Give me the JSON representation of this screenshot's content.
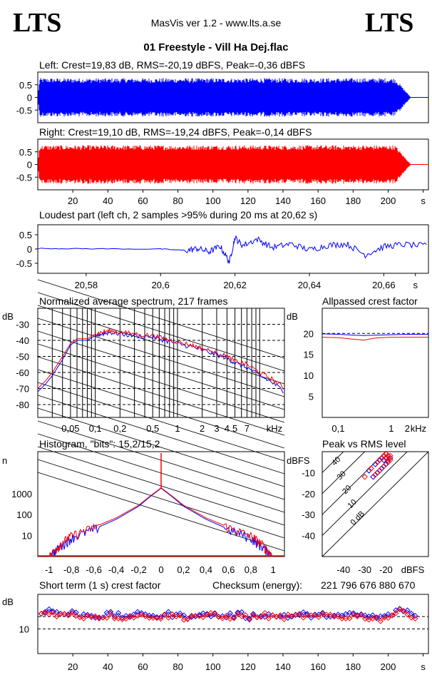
{
  "header": {
    "logo_left": "LTS",
    "logo_right": "LTS",
    "app_title": "MasVis ver 1.2 - www.lts.a.se",
    "file_name": "01 Freestyle - Vill Ha Dej.flac"
  },
  "colors": {
    "left": "#0000ff",
    "right": "#ff0000",
    "grid": "#000000"
  },
  "panels": {
    "left_title": "Left: Crest=19,83 dB, RMS=-20,19 dBFS, Peak=-0,36 dBFS",
    "right_title": "Right: Crest=19,10 dB, RMS=-19,24 dBFS, Peak=-0,14 dBFS",
    "loudest_title": "Loudest part (left  ch, 2 samples >95% during 20 ms at 20,62 s)",
    "spectrum_title": "Normalized average spectrum, 217 frames",
    "allpass_title": "Allpassed crest factor",
    "histogram_title": "Histogram, \"bits\": 15,2/15,2",
    "peakrms_title": "Peak vs RMS level",
    "shortcrest_title": "Short term (1 s) crest factor",
    "checksum_label": "Checksum (energy):",
    "checksum_value": "221 796 676 880 670"
  },
  "chart_data": [
    {
      "type": "area",
      "name": "left-waveform",
      "title": "Left: Crest=19,83 dB, RMS=-20,19 dBFS, Peak=-0,36 dBFS",
      "yticks": [
        "0.5",
        "0",
        "-0.5"
      ],
      "ylim": [
        -1,
        1
      ],
      "xlim": [
        0,
        223
      ],
      "envelope": {
        "end_s": 213,
        "fade_start_s": 204,
        "typical_peak": 0.8,
        "rms_dbfs": -20.19,
        "peak_dbfs": -0.36
      },
      "grid": false
    },
    {
      "type": "area",
      "name": "right-waveform",
      "title": "Right: Crest=19,10 dB, RMS=-19,24 dBFS, Peak=-0,14 dBFS",
      "yticks": [
        "0.5",
        "0",
        "-0.5"
      ],
      "xticks": [
        "20",
        "40",
        "60",
        "80",
        "100",
        "120",
        "140",
        "160",
        "180",
        "200",
        "s"
      ],
      "ylim": [
        -1,
        1
      ],
      "xlim": [
        0,
        223
      ],
      "envelope": {
        "end_s": 213,
        "fade_start_s": 204,
        "typical_peak": 0.8,
        "rms_dbfs": -19.24,
        "peak_dbfs": -0.14
      },
      "grid": false
    },
    {
      "type": "line",
      "name": "loudest-part",
      "title": "Loudest part (left  ch, 2 samples >95% during 20 ms at 20,62 s)",
      "yticks": [
        "0.5",
        "0",
        "-0.5"
      ],
      "xticks": [
        "20,58",
        "20,6",
        "20,62",
        "20,64",
        "20,66",
        "s"
      ],
      "xlim": [
        20.567,
        20.672
      ],
      "ylim": [
        -0.85,
        0.85
      ],
      "x": [
        20.567,
        20.58,
        20.6,
        20.607,
        20.61,
        20.613,
        20.616,
        20.6185,
        20.62,
        20.622,
        20.626,
        20.63,
        20.635,
        20.64,
        20.645,
        20.65,
        20.655,
        20.66,
        20.665,
        20.672
      ],
      "y": [
        0.02,
        0.01,
        0.0,
        -0.05,
        0.02,
        -0.1,
        0.1,
        -0.45,
        0.4,
        0.12,
        0.35,
        0.05,
        0.18,
        -0.03,
        0.13,
        0.18,
        -0.2,
        0.08,
        0.16,
        0.1
      ],
      "grid": false
    },
    {
      "type": "line",
      "name": "normalized-spectrum",
      "title": "Normalized average spectrum, 217 frames",
      "ylabel": "dB",
      "yticks": [
        "-30",
        "-40",
        "-50",
        "-60",
        "-70",
        "-80"
      ],
      "xticks": [
        "0,05",
        "0,1",
        "0,2",
        "0,5",
        "1",
        "2",
        "3",
        "4",
        "5",
        "7",
        "kHz"
      ],
      "xscale": "log",
      "xlim": [
        0.02,
        20
      ],
      "ylim": [
        -88,
        -20
      ],
      "series": [
        {
          "x": [
            0.02,
            0.025,
            0.03,
            0.04,
            0.05,
            0.06,
            0.08,
            0.1,
            0.12,
            0.15,
            0.2,
            0.3,
            0.5,
            0.7,
            1,
            1.5,
            2,
            3,
            4,
            5,
            7,
            10,
            14,
            20
          ],
          "values": [
            -72,
            -67,
            -62,
            -52,
            -43,
            -40,
            -40,
            -37,
            -36,
            -35,
            -36,
            -37,
            -38,
            -40,
            -42,
            -44,
            -46,
            -49,
            -51,
            -54,
            -57,
            -62,
            -66,
            -72
          ]
        },
        {
          "x": [
            0.02,
            0.025,
            0.03,
            0.04,
            0.05,
            0.06,
            0.08,
            0.1,
            0.12,
            0.15,
            0.2,
            0.3,
            0.5,
            0.7,
            1,
            1.5,
            2,
            3,
            4,
            5,
            7,
            10,
            14,
            20
          ],
          "values": [
            -70,
            -65,
            -60,
            -50,
            -42,
            -39,
            -39,
            -36,
            -35,
            -34,
            -35,
            -36,
            -37,
            -39,
            -41,
            -43,
            -45,
            -48,
            -50,
            -53,
            -55,
            -60,
            -64,
            -70
          ]
        }
      ],
      "grid": true
    },
    {
      "type": "line",
      "name": "allpassed-crest-factor",
      "title": "Allpassed crest factor",
      "ylabel": "dB",
      "yticks": [
        "20",
        "15",
        "10",
        "5"
      ],
      "xticks": [
        "0,1",
        "1",
        "2",
        "kHz"
      ],
      "xscale": "log",
      "xlim": [
        0.05,
        5
      ],
      "ylim": [
        0,
        26
      ],
      "series": [
        {
          "x": [
            0.05,
            0.1,
            0.2,
            0.3,
            0.5,
            1,
            2,
            5
          ],
          "values": [
            19.9,
            19.8,
            19.6,
            19.5,
            19.6,
            19.7,
            19.8,
            19.8
          ]
        },
        {
          "x": [
            0.05,
            0.1,
            0.2,
            0.3,
            0.5,
            1,
            2,
            5
          ],
          "values": [
            19.1,
            19.0,
            18.6,
            18.4,
            18.9,
            19.1,
            19.1,
            19.1
          ]
        }
      ],
      "grid": false
    },
    {
      "type": "line",
      "name": "histogram",
      "title": "Histogram, \"bits\": 15,2/15,2",
      "ylabel": "n",
      "yticks": [
        "1000",
        "100",
        "10"
      ],
      "xticks": [
        "-1",
        "-0,8",
        "-0,6",
        "-0,4",
        "-0,2",
        "0",
        "0,2",
        "0,4",
        "0,6",
        "0,8",
        "1"
      ],
      "yscale": "log",
      "xlim": [
        -1.1,
        1.1
      ],
      "ylim": [
        1,
        100000
      ],
      "series": [
        {
          "x": [
            -1,
            -0.9,
            -0.8,
            -0.6,
            -0.4,
            -0.2,
            -0.1,
            0,
            0.1,
            0.2,
            0.4,
            0.6,
            0.8,
            0.9,
            1
          ],
          "values": [
            1,
            3,
            8,
            20,
            60,
            250,
            700,
            1800,
            700,
            250,
            60,
            20,
            8,
            3,
            1
          ]
        },
        {
          "x": [
            -1,
            -0.9,
            -0.8,
            -0.6,
            -0.4,
            -0.2,
            -0.1,
            0,
            0.1,
            0.2,
            0.4,
            0.6,
            0.8,
            0.9,
            1
          ],
          "values": [
            1,
            4,
            10,
            25,
            70,
            280,
            750,
            1900,
            750,
            280,
            70,
            25,
            10,
            4,
            1
          ]
        }
      ],
      "grid": false
    },
    {
      "type": "scatter",
      "name": "peak-vs-rms",
      "title": "Peak vs RMS level",
      "ylabel": "dBFS",
      "xlabel": "dBFS",
      "yticks": [
        "-10",
        "-20",
        "-30",
        "-40"
      ],
      "xticks": [
        "-40",
        "-30",
        "-20"
      ],
      "diagonal_labels": [
        "40",
        "30",
        "20",
        "10",
        "0 dB"
      ],
      "xlim": [
        -50,
        0
      ],
      "ylim": [
        -50,
        0
      ],
      "series": [
        {
          "x": [
            -28,
            -25,
            -23,
            -22,
            -21,
            -21,
            -20,
            -20,
            -19,
            -19,
            -18,
            -20,
            -22,
            -24,
            -26
          ],
          "values": [
            -9,
            -6,
            -4,
            -3,
            -2,
            -4,
            -1,
            -3,
            -2,
            -5,
            -3,
            -6,
            -8,
            -10,
            -12
          ]
        },
        {
          "x": [
            -30,
            -27,
            -24,
            -22,
            -21,
            -20,
            -20,
            -19,
            -19,
            -18,
            -18,
            -19,
            -21,
            -23,
            -25
          ],
          "values": [
            -12,
            -8,
            -5,
            -3,
            -2,
            -3,
            -1,
            -2,
            -4,
            -2,
            -4,
            -5,
            -7,
            -9,
            -11
          ]
        }
      ],
      "grid": false
    },
    {
      "type": "scatter",
      "name": "short-term-crest",
      "title": "Short term (1 s) crest factor",
      "ylabel": "dB",
      "yticks": [
        "10"
      ],
      "xticks": [
        "20",
        "40",
        "60",
        "80",
        "100",
        "120",
        "140",
        "160",
        "180",
        "200",
        "s"
      ],
      "xlim": [
        0,
        223
      ],
      "ylim": [
        0,
        24
      ],
      "series": [
        {
          "x": [
            2,
            6,
            10,
            15,
            20,
            25,
            30,
            35,
            40,
            45,
            50,
            55,
            60,
            65,
            70,
            75,
            80,
            85,
            90,
            95,
            100,
            105,
            110,
            115,
            120,
            125,
            130,
            135,
            140,
            145,
            150,
            155,
            160,
            165,
            170,
            175,
            180,
            185,
            190,
            195,
            200,
            205,
            210,
            215
          ],
          "values": [
            17,
            17.5,
            17,
            16,
            16.5,
            15.5,
            16,
            15,
            16,
            15.5,
            15,
            16,
            15.5,
            16,
            15,
            16,
            15.5,
            15,
            16,
            15.5,
            16,
            15,
            15.5,
            16,
            15,
            15.5,
            16,
            15,
            15.5,
            15,
            16,
            15.5,
            15,
            16,
            15.5,
            15,
            16,
            15.5,
            15,
            14.5,
            15.5,
            17,
            18,
            15
          ]
        },
        {
          "x": [
            2,
            6,
            10,
            15,
            20,
            25,
            30,
            35,
            40,
            45,
            50,
            55,
            60,
            65,
            70,
            75,
            80,
            85,
            90,
            95,
            100,
            105,
            110,
            115,
            120,
            125,
            130,
            135,
            140,
            145,
            150,
            155,
            160,
            165,
            170,
            175,
            180,
            185,
            190,
            195,
            200,
            205,
            210,
            215
          ],
          "values": [
            16.5,
            16.8,
            16.2,
            15.5,
            16,
            15,
            15.5,
            14.8,
            15.5,
            15,
            14.6,
            15.5,
            15,
            15.5,
            14.6,
            15.5,
            15,
            14.6,
            15.5,
            15,
            15.5,
            14.6,
            15,
            15.5,
            14.6,
            15,
            15.5,
            14.6,
            15,
            14.6,
            15.5,
            15,
            14.6,
            15.5,
            15,
            14.6,
            15.5,
            15,
            14.6,
            14,
            15,
            16.5,
            17.5,
            14.5
          ]
        }
      ],
      "reference_lines": [
        10,
        15
      ],
      "grid": false
    }
  ]
}
